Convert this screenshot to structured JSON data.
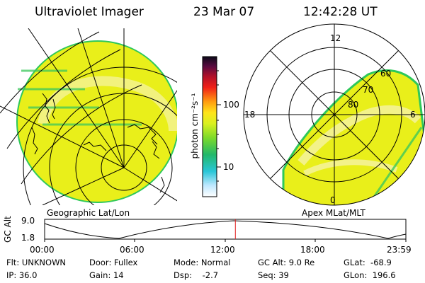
{
  "header": {
    "instrument": "Ultraviolet Imager",
    "date": "23 Mar 07",
    "time": "12:42:28 UT"
  },
  "colorbar": {
    "label": "photon cm⁻²s⁻¹",
    "ticks": [
      "100",
      "10"
    ]
  },
  "left_panel": {
    "label": "Geographic Lat/Lon"
  },
  "right_panel": {
    "label": "Apex MLat/MLT",
    "mlt_labels": {
      "top": "12",
      "left": "18",
      "right": "6",
      "bottom": "0"
    },
    "lat_labels": [
      "60",
      "70",
      "80"
    ]
  },
  "timeline": {
    "y_label": "GC Alt",
    "y_ticks": [
      "9.0",
      "1.8"
    ],
    "x_ticks": [
      "00:00",
      "06:00",
      "12:00",
      "18:00",
      "23:59"
    ],
    "current_fraction": 0.528
  },
  "footer": {
    "filter": "Flt: UNKNOWN",
    "ip": "IP: 36.0",
    "door": "Door: Fullex",
    "gain": "Gain: 14",
    "mode": "Mode: Normal",
    "dsp": "Dsp:    -2.7",
    "gc_alt": "GC Alt: 9.0 Re",
    "seq": "Seq: 39",
    "glat": "GLat:  -68.9",
    "glon": "GLon:  196.6"
  },
  "colors": {
    "aurora_fill": "#e9ef1a",
    "aurora_band": "#f3f28a",
    "aurora_edge": "#2fc85a",
    "marker": "#e02020"
  }
}
